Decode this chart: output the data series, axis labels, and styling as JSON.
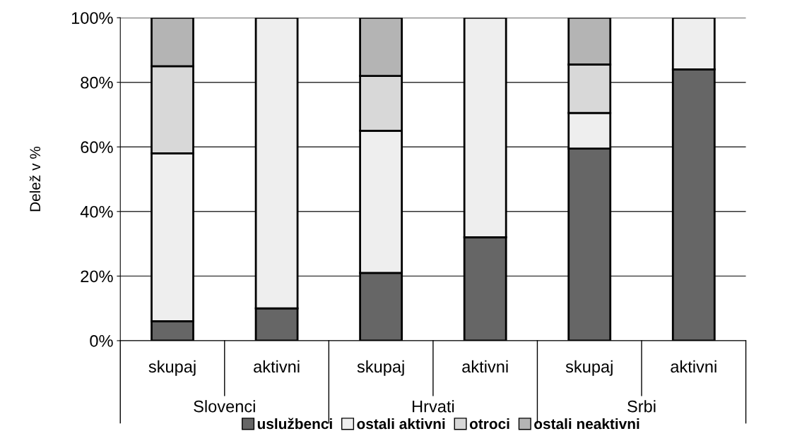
{
  "chart_data": {
    "type": "bar",
    "stacked": true,
    "ylabel": "Delež v %",
    "categories": [
      "skupaj",
      "aktivni",
      "skupaj",
      "aktivni",
      "skupaj",
      "aktivni"
    ],
    "annotations": [
      "Slovenci",
      "Hrvati",
      "Srbi"
    ],
    "series": [
      {
        "name": "uslužbenci",
        "color": "#666666",
        "values": [
          6,
          10,
          21,
          32,
          59.5,
          84
        ]
      },
      {
        "name": "ostali aktivni",
        "color": "#eeeeee",
        "values": [
          52,
          90,
          44,
          68,
          11,
          16
        ]
      },
      {
        "name": "otroci",
        "color": "#d8d8d8",
        "values": [
          27,
          null,
          17,
          null,
          15,
          null
        ]
      },
      {
        "name": "ostali neaktivni",
        "color": "#b4b4b4",
        "values": [
          15,
          null,
          18,
          null,
          14.5,
          null
        ]
      }
    ],
    "ylim": [
      0,
      100
    ],
    "yticks": [
      {
        "value": 0,
        "label": "0%"
      },
      {
        "value": 20,
        "label": "20%"
      },
      {
        "value": 40,
        "label": "40%"
      },
      {
        "value": 60,
        "label": "60%"
      },
      {
        "value": 80,
        "label": "80%"
      },
      {
        "value": 100,
        "label": "100%"
      }
    ],
    "grid": "y",
    "legend": "bottom"
  }
}
